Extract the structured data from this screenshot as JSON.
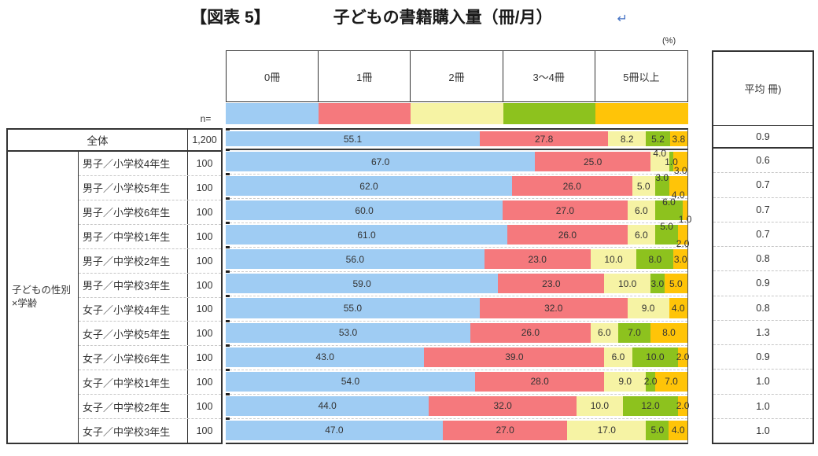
{
  "title": {
    "prefix": "【図表 5】",
    "main": "子どもの書籍購入量（冊/月）",
    "return_mark": "↵"
  },
  "unit_label": "(%)",
  "n_label": "n=",
  "avg_header": "平均 冊)",
  "group_label_line1": "子どもの性別",
  "group_label_line2": "×学齢",
  "chart_data": {
    "type": "bar",
    "orientation": "horizontal",
    "stacked": true,
    "unit": "%",
    "xlim": [
      0,
      100
    ],
    "title": "子どもの書籍購入量（冊/月）",
    "series_labels": [
      "0冊",
      "1冊",
      "2冊",
      "3～4冊",
      "5冊以上"
    ],
    "series_colors": [
      "#9FCCF3",
      "#F5797D",
      "#F6F3A4",
      "#8DC21E",
      "#FFC408"
    ],
    "rows": [
      {
        "label": "全体",
        "n": "1,200",
        "values": [
          55.1,
          27.8,
          8.2,
          5.2,
          3.8
        ],
        "avg": "0.9",
        "label_layout": [
          "in",
          "in",
          "in",
          "in",
          "in"
        ]
      },
      {
        "label": "男子／小学校4年生",
        "n": "100",
        "values": [
          67.0,
          25.0,
          4.0,
          1.0,
          3.0
        ],
        "avg": "0.6",
        "label_layout": [
          "in",
          "in",
          "up",
          "in",
          "down"
        ]
      },
      {
        "label": "男子／小学校5年生",
        "n": "100",
        "values": [
          62.0,
          26.0,
          5.0,
          3.0,
          4.0
        ],
        "avg": "0.7",
        "label_layout": [
          "in",
          "in",
          "in",
          "up",
          "down"
        ]
      },
      {
        "label": "男子／小学校6年生",
        "n": "100",
        "values": [
          60.0,
          27.0,
          6.0,
          6.0,
          1.0
        ],
        "avg": "0.7",
        "label_layout": [
          "in",
          "in",
          "in",
          "up",
          "down"
        ]
      },
      {
        "label": "男子／中学校1年生",
        "n": "100",
        "values": [
          61.0,
          26.0,
          6.0,
          5.0,
          2.0
        ],
        "avg": "0.7",
        "label_layout": [
          "in",
          "in",
          "in",
          "up",
          "down"
        ]
      },
      {
        "label": "男子／中学校2年生",
        "n": "100",
        "values": [
          56.0,
          23.0,
          10.0,
          8.0,
          3.0
        ],
        "avg": "0.8",
        "label_layout": [
          "in",
          "in",
          "in",
          "in",
          "in"
        ]
      },
      {
        "label": "男子／中学校3年生",
        "n": "100",
        "values": [
          59.0,
          23.0,
          10.0,
          3.0,
          5.0
        ],
        "avg": "0.9",
        "label_layout": [
          "in",
          "in",
          "in",
          "in",
          "in"
        ]
      },
      {
        "label": "女子／小学校4年生",
        "n": "100",
        "values": [
          55.0,
          32.0,
          9.0,
          0.0,
          4.0
        ],
        "avg": "0.8",
        "label_layout": [
          "in",
          "in",
          "in",
          "none",
          "in"
        ]
      },
      {
        "label": "女子／小学校5年生",
        "n": "100",
        "values": [
          53.0,
          26.0,
          6.0,
          7.0,
          8.0
        ],
        "avg": "1.3",
        "label_layout": [
          "in",
          "in",
          "in",
          "in",
          "in"
        ]
      },
      {
        "label": "女子／小学校6年生",
        "n": "100",
        "values": [
          43.0,
          39.0,
          6.0,
          10.0,
          2.0
        ],
        "avg": "0.9",
        "label_layout": [
          "in",
          "in",
          "in",
          "in",
          "in"
        ]
      },
      {
        "label": "女子／中学校1年生",
        "n": "100",
        "values": [
          54.0,
          28.0,
          9.0,
          2.0,
          7.0
        ],
        "avg": "1.0",
        "label_layout": [
          "in",
          "in",
          "in",
          "in",
          "in"
        ]
      },
      {
        "label": "女子／中学校2年生",
        "n": "100",
        "values": [
          44.0,
          32.0,
          10.0,
          12.0,
          2.0
        ],
        "avg": "1.0",
        "label_layout": [
          "in",
          "in",
          "in",
          "in",
          "in"
        ]
      },
      {
        "label": "女子／中学校3年生",
        "n": "100",
        "values": [
          47.0,
          27.0,
          17.0,
          5.0,
          4.0
        ],
        "avg": "1.0",
        "label_layout": [
          "in",
          "in",
          "in",
          "in",
          "in"
        ]
      }
    ]
  }
}
